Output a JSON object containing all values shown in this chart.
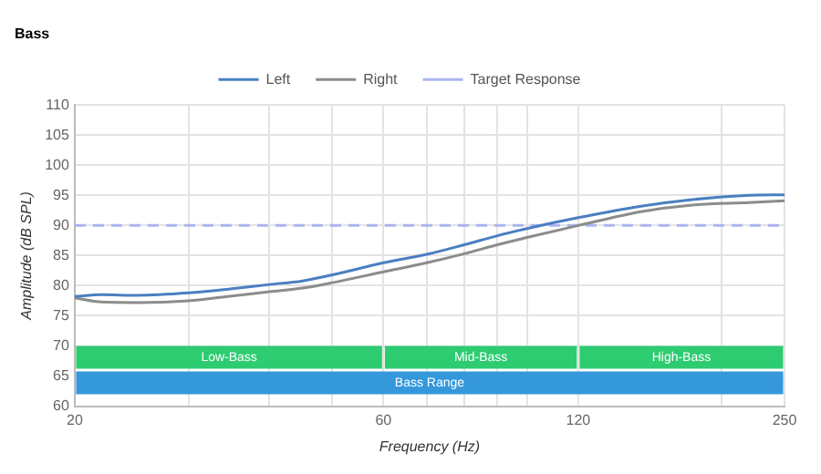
{
  "chart_data": {
    "type": "line",
    "title": "Bass",
    "xlabel": "Frequency (Hz)",
    "ylabel": "Amplitude (dB SPL)",
    "log": "x",
    "xlim": [
      20,
      250
    ],
    "xticks": [
      20,
      {
        "value": 30,
        "label": null
      },
      {
        "value": 40,
        "label": null
      },
      {
        "value": 50,
        "label": null
      },
      60,
      {
        "value": 70,
        "label": null
      },
      {
        "value": 80,
        "label": null
      },
      {
        "value": 90,
        "label": null
      },
      {
        "value": 100,
        "label": null
      },
      120,
      {
        "value": 200,
        "label": null
      },
      250
    ],
    "ylim": [
      60,
      110
    ],
    "yticks": [
      60,
      65,
      70,
      75,
      80,
      85,
      90,
      95,
      100,
      105,
      110
    ],
    "x": [
      20,
      22,
      25,
      30,
      35,
      40,
      45,
      50,
      60,
      70,
      80,
      90,
      100,
      120,
      150,
      180,
      220,
      250
    ],
    "series": [
      {
        "name": "Left",
        "color": "#4a7fc1",
        "values": [
          78.2,
          78.5,
          78.4,
          78.8,
          79.5,
          80.2,
          80.8,
          81.8,
          83.8,
          85.2,
          86.8,
          88.3,
          89.5,
          91.3,
          93.2,
          94.3,
          95,
          95.1
        ]
      },
      {
        "name": "Right",
        "color": "#8c8c8c",
        "values": [
          78,
          77.3,
          77.2,
          77.5,
          78.3,
          79,
          79.6,
          80.5,
          82.3,
          83.8,
          85.3,
          86.8,
          88,
          90,
          92.3,
          93.4,
          93.8,
          94.1
        ]
      }
    ],
    "ref_lines": [
      {
        "axis": "y",
        "value": 90,
        "label": "Target Response",
        "color": "#aab4f0",
        "line_style": "dashed"
      }
    ],
    "bands": [
      {
        "axis": "x",
        "from": 20,
        "to": 60,
        "label": "Low-Bass",
        "color": "#2ecc71"
      },
      {
        "axis": "x",
        "from": 60,
        "to": 120,
        "label": "Mid-Bass",
        "color": "#2ecc71"
      },
      {
        "axis": "x",
        "from": 120,
        "to": 250,
        "label": "High-Bass",
        "color": "#2ecc71"
      },
      {
        "axis": "x",
        "from": 20,
        "to": 250,
        "label": "Bass Range",
        "color": "#3498db"
      }
    ],
    "grid": true,
    "legend": "top",
    "marker": "none",
    "line_style": "solid"
  }
}
